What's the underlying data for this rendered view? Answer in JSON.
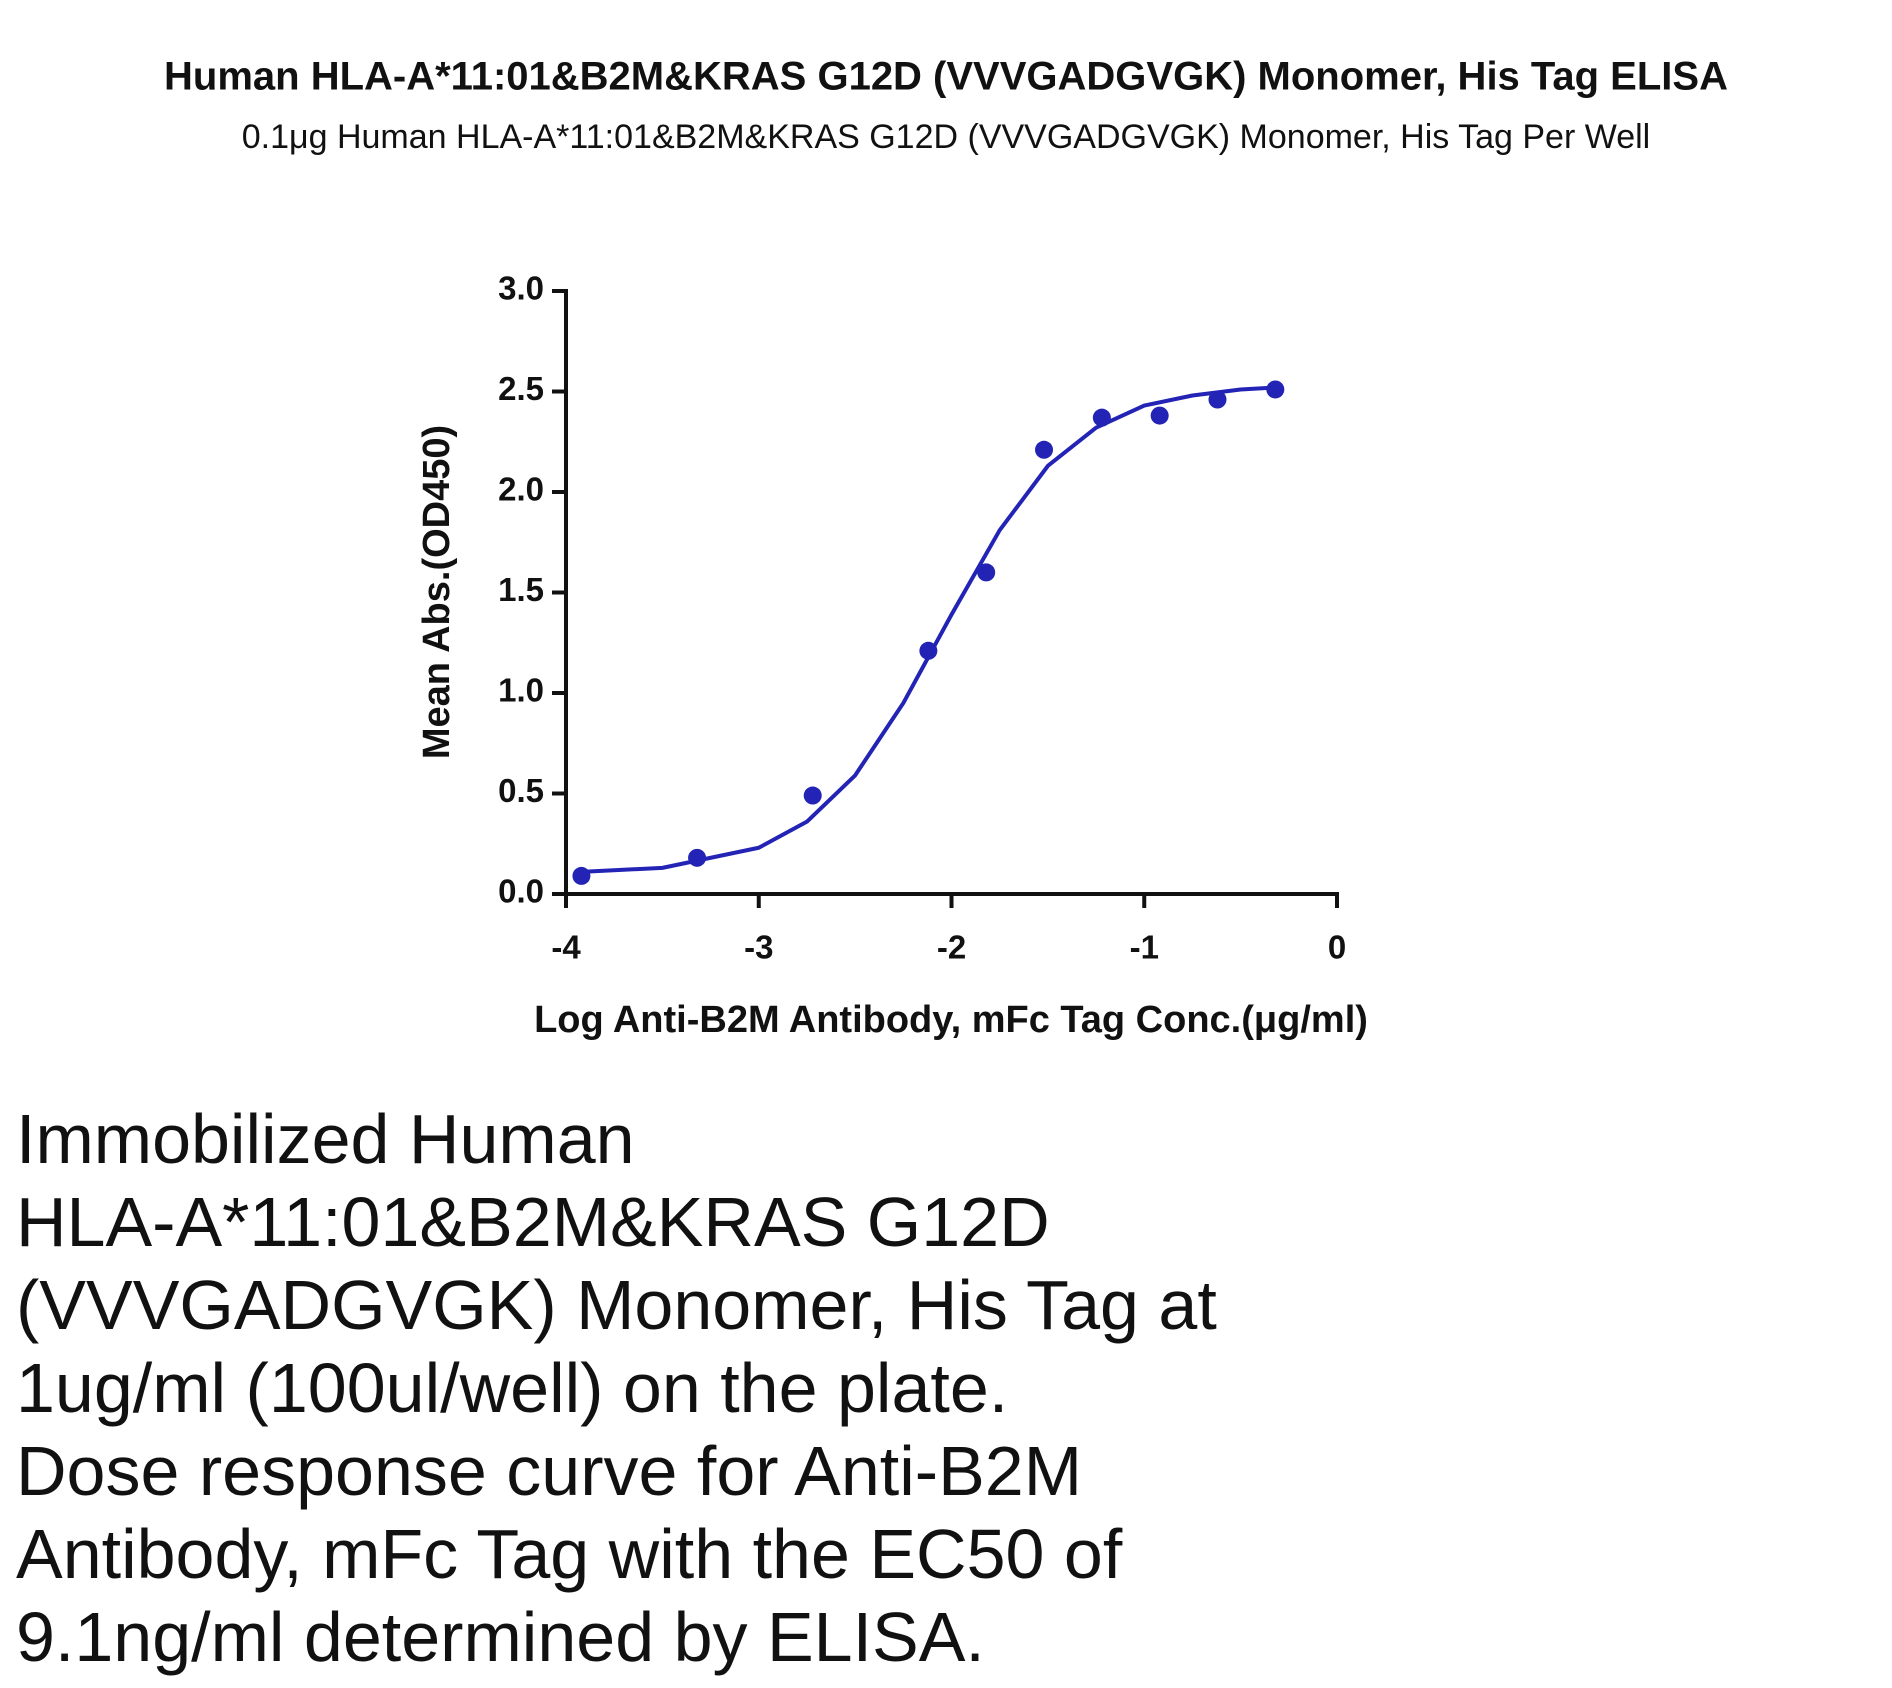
{
  "chart_data": {
    "type": "scatter",
    "title": "Human HLA-A*11:01&B2M&KRAS G12D (VVVGADGVGK) Monomer, His Tag ELISA",
    "subtitle": "0.1μg Human HLA-A*11:01&B2M&KRAS G12D (VVVGADGVGK) Monomer, His Tag Per Well",
    "x_label": "Log Anti-B2M Antibody, mFc Tag Conc.(μg/ml)",
    "y_label": "Mean Abs.(OD450)",
    "xlim": [
      -4,
      0
    ],
    "xticks": [
      -4,
      -3,
      -2,
      -1,
      0
    ],
    "ylim": [
      0,
      3
    ],
    "yticks": [
      {
        "value": 0,
        "label": "0.0"
      },
      0.5,
      {
        "value": 1,
        "label": "1.0"
      },
      1.5,
      {
        "value": 2,
        "label": "2.0"
      },
      2.5,
      {
        "value": 3,
        "label": "3.0"
      }
    ],
    "series": [
      {
        "type": "scatter",
        "color": "#2323b5",
        "x": [
          -3.92,
          -3.32,
          -2.72,
          -2.12,
          -1.82,
          -1.52,
          -1.22,
          -0.92,
          -0.62,
          -0.32
        ],
        "values": [
          0.09,
          0.18,
          0.49,
          1.21,
          1.6,
          2.21,
          2.37,
          2.38,
          2.46,
          2.51
        ]
      },
      {
        "type": "line",
        "color": "#2323b5",
        "x": [
          -3.92,
          -3.5,
          -3.0,
          -2.75,
          -2.5,
          -2.25,
          -2.0,
          -1.75,
          -1.5,
          -1.25,
          -1.0,
          -0.75,
          -0.5,
          -0.32
        ],
        "values": [
          0.11,
          0.13,
          0.23,
          0.36,
          0.59,
          0.95,
          1.39,
          1.81,
          2.13,
          2.32,
          2.43,
          2.48,
          2.51,
          2.52
        ]
      }
    ]
  },
  "description": {
    "lines": [
      "Immobilized Human",
      "HLA-A*11:01&B2M&KRAS G12D",
      "(VVVGADGVGK) Monomer, His Tag at",
      "1ug/ml (100ul/well) on the plate.",
      "Dose response curve for Anti-B2M",
      "Antibody, mFc Tag with the EC50 of",
      "9.1ng/ml determined by ELISA."
    ]
  }
}
